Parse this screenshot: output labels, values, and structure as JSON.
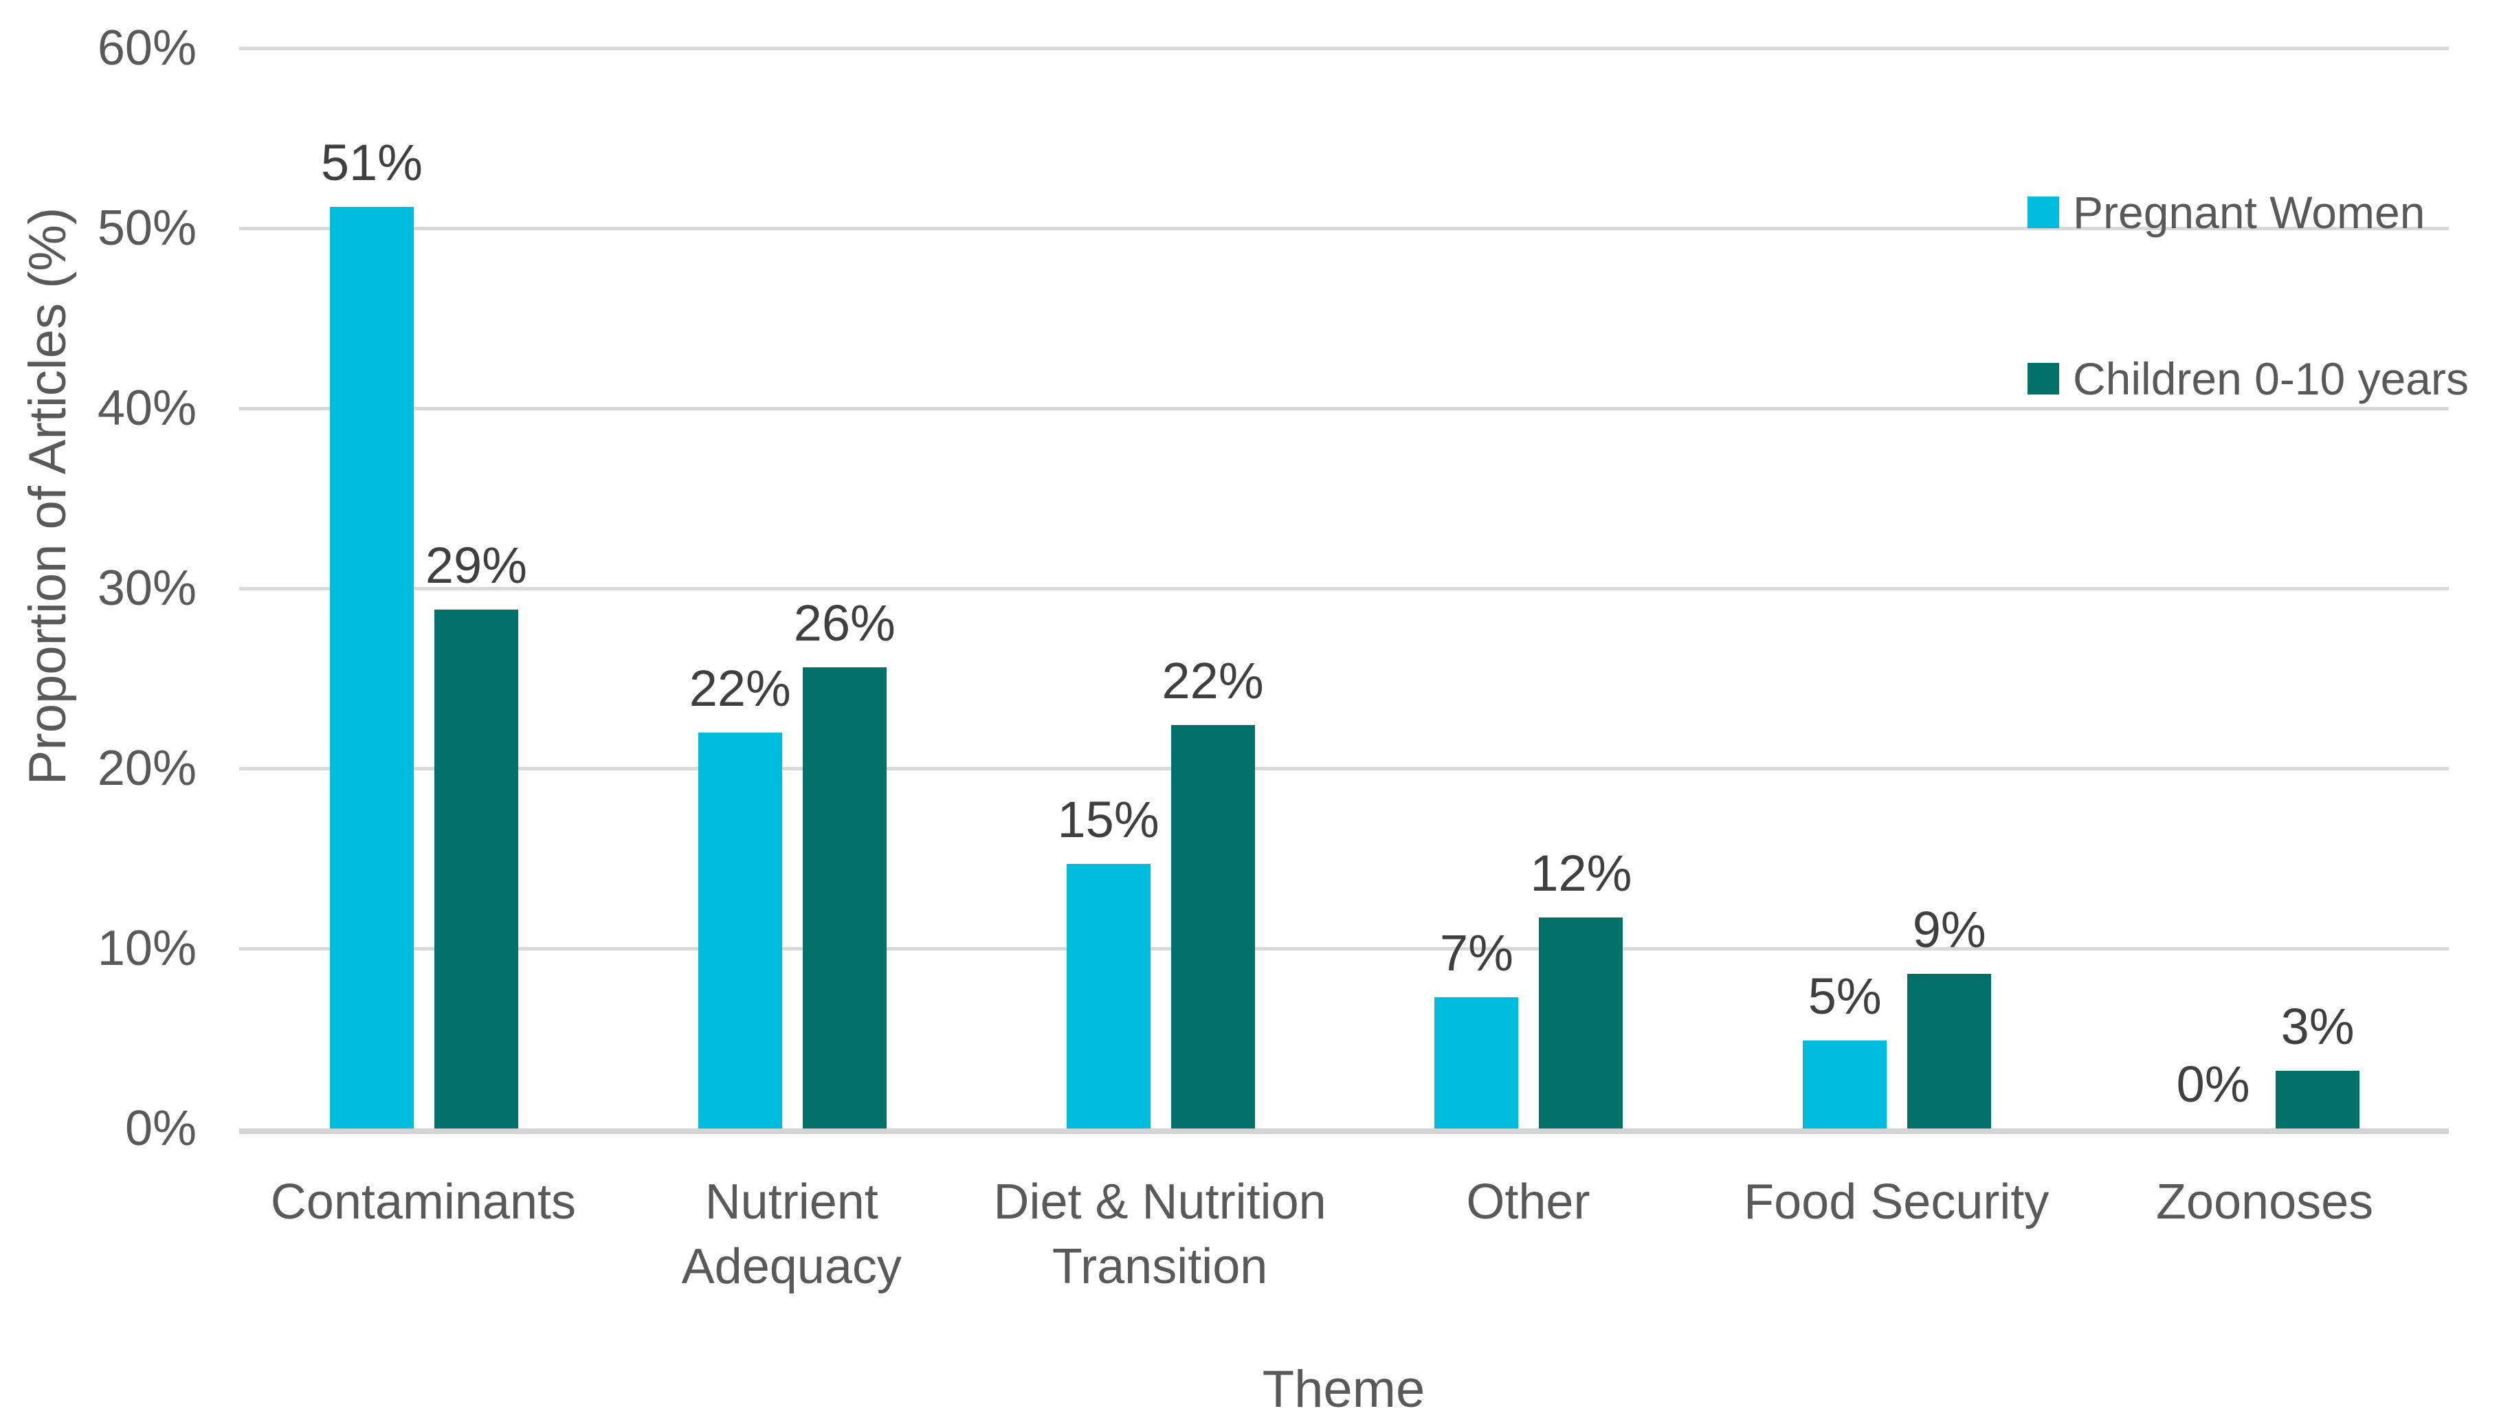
{
  "chart_data": {
    "type": "bar",
    "title": "",
    "xlabel": "Theme",
    "ylabel": "Proportion of Articles (%)",
    "ylim": [
      0,
      60
    ],
    "yticks": [
      0,
      10,
      20,
      30,
      40,
      50,
      60
    ],
    "ytick_labels": [
      "0%",
      "10%",
      "20%",
      "30%",
      "40%",
      "50%",
      "60%"
    ],
    "grid": true,
    "legend_position": "top-right",
    "categories": [
      "Contaminants",
      "Nutrient Adequacy",
      "Diet & Nutrition Transition",
      "Other",
      "Food Security",
      "Zoonoses"
    ],
    "category_label_lines": [
      [
        "Contaminants"
      ],
      [
        "Nutrient",
        "Adequacy"
      ],
      [
        "Diet & Nutrition",
        "Transition"
      ],
      [
        "Other"
      ],
      [
        "Food Security"
      ],
      [
        "Zoonoses"
      ]
    ],
    "series": [
      {
        "name": "Pregnant Women",
        "color": "#00BCDC",
        "values": [
          51.2,
          22.0,
          14.7,
          7.3,
          4.9,
          0
        ],
        "data_labels": [
          "51%",
          "22%",
          "15%",
          "7%",
          "5%",
          "0%"
        ]
      },
      {
        "name": "Children 0-10 years",
        "color": "#007069",
        "values": [
          28.8,
          25.6,
          22.4,
          11.7,
          8.6,
          3.2
        ],
        "data_labels": [
          "29%",
          "26%",
          "22%",
          "12%",
          "9%",
          "3%"
        ]
      }
    ],
    "colors": {
      "gridline": "#D9D9D9",
      "axis_line": "#D4D4D4",
      "tick_label": "#595959",
      "data_label": "#3F3F3F",
      "category_label": "#595959",
      "legend_text": "#595959",
      "axis_title": "#595959",
      "background": "#FFFFFF"
    }
  }
}
